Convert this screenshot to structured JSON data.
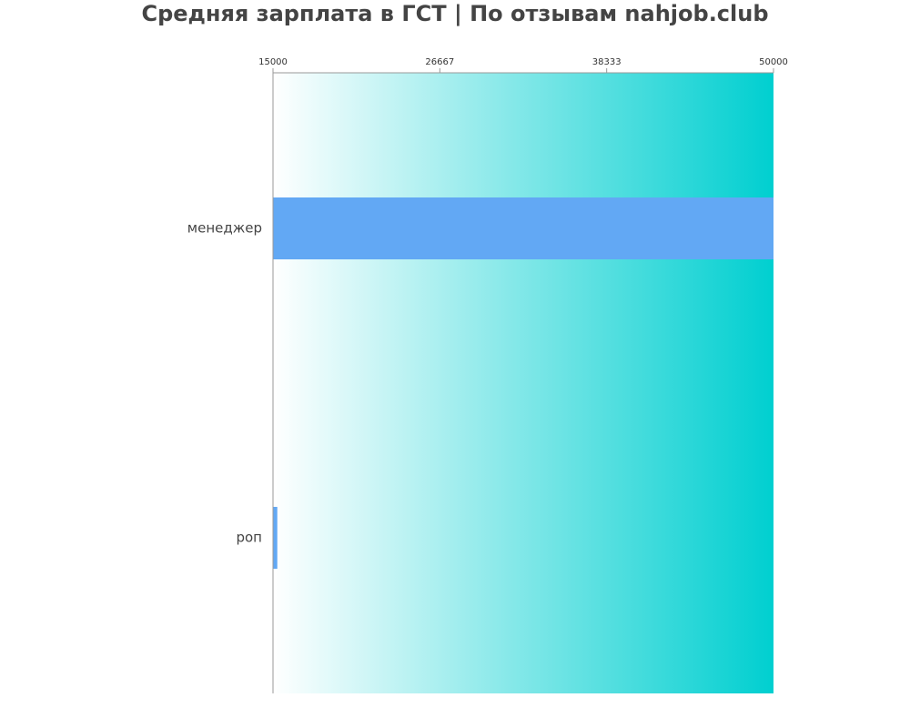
{
  "chart_data": {
    "type": "bar",
    "orientation": "horizontal",
    "title": "Средняя зарплата в ГСТ | По отзывам nahjob.club",
    "xlabel": "",
    "ylabel": "",
    "categories": [
      "менеджер",
      "роп"
    ],
    "values": [
      50000,
      15300
    ],
    "xlim": [
      15000,
      50000
    ],
    "xticks": [
      "15000",
      "26667",
      "38333",
      "50000"
    ],
    "tick_position": "top",
    "grid": false,
    "bar_color": "#62a8f4",
    "background_gradient": [
      "#ffffff",
      "#00cfd0"
    ]
  }
}
